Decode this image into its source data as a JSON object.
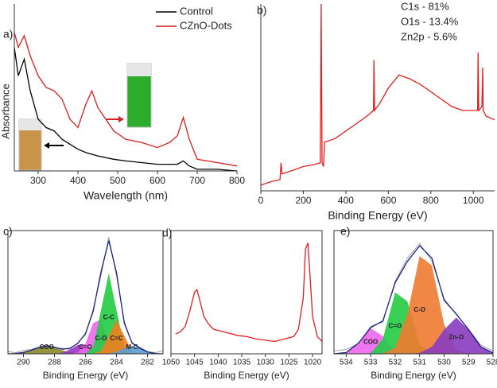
{
  "chart_data": [
    {
      "type": "line",
      "label": "a)",
      "xlabel": "Wavelength (nm)",
      "ylabel": "Absorbance",
      "legend": "upper right",
      "xlim": [
        240,
        800
      ],
      "xticks": [
        300,
        400,
        500,
        600,
        700,
        800
      ],
      "ylim": [
        0,
        1
      ],
      "x": [
        240,
        250,
        265,
        280,
        300,
        320,
        340,
        360,
        380,
        400,
        420,
        435,
        450,
        470,
        490,
        520,
        560,
        600,
        630,
        650,
        665,
        680,
        700,
        750,
        800
      ],
      "series": [
        {
          "name": "Control",
          "color": "#000000",
          "values": [
            0.74,
            0.57,
            0.67,
            0.48,
            0.31,
            0.26,
            0.24,
            0.19,
            0.16,
            0.13,
            0.11,
            0.1,
            0.09,
            0.08,
            0.07,
            0.06,
            0.05,
            0.04,
            0.04,
            0.04,
            0.06,
            0.03,
            0.01,
            0.01,
            0.0
          ]
        },
        {
          "name": "CZnO-Dots",
          "color": "#d42020",
          "values": [
            0.83,
            0.74,
            0.81,
            0.69,
            0.57,
            0.5,
            0.48,
            0.43,
            0.31,
            0.26,
            0.4,
            0.48,
            0.38,
            0.31,
            0.24,
            0.19,
            0.17,
            0.14,
            0.17,
            0.21,
            0.32,
            0.19,
            0.07,
            0.05,
            0.03
          ]
        }
      ]
    },
    {
      "type": "line",
      "label": "b)",
      "xlabel": "Binding Energy (eV)",
      "annotations": [
        "C1s  -  81%",
        "O1s  -  13.4%",
        "Zn2p  -  5.6%"
      ],
      "xlim": [
        0,
        1100
      ],
      "xticks": [
        0,
        200,
        400,
        600,
        800,
        1000
      ],
      "ylim": [
        0,
        1
      ],
      "x": [
        0,
        50,
        90,
        95,
        100,
        150,
        200,
        250,
        280,
        284,
        288,
        295,
        300,
        350,
        400,
        450,
        500,
        530,
        532,
        535,
        560,
        600,
        650,
        700,
        750,
        800,
        850,
        900,
        950,
        1000,
        1020,
        1022,
        1025,
        1040,
        1044,
        1046,
        1060,
        1100
      ],
      "series": [
        {
          "color": "#e02020",
          "values": [
            0.03,
            0.05,
            0.06,
            0.15,
            0.09,
            0.11,
            0.13,
            0.14,
            0.15,
            1.0,
            0.15,
            0.13,
            0.26,
            0.28,
            0.32,
            0.36,
            0.4,
            0.43,
            0.7,
            0.43,
            0.47,
            0.55,
            0.62,
            0.6,
            0.57,
            0.53,
            0.49,
            0.45,
            0.43,
            0.43,
            0.43,
            0.74,
            0.43,
            0.45,
            0.66,
            0.43,
            0.4,
            0.38
          ]
        }
      ]
    },
    {
      "type": "line",
      "label": "c)",
      "xlabel": "Binding Energy (eV)",
      "legend": "peaks",
      "xlim": [
        291,
        281
      ],
      "xticks": [
        290,
        288,
        286,
        284,
        282
      ],
      "ylim": [
        0,
        1.1
      ],
      "x": [
        291,
        290.5,
        290,
        289.5,
        289,
        288.5,
        288,
        287.5,
        287,
        286.5,
        286,
        285.5,
        285,
        284.5,
        284,
        283.5,
        283,
        282.5,
        282,
        281.5,
        281
      ],
      "series": [
        {
          "name": "COO",
          "color": "#8a8a2a",
          "fill": true,
          "values": [
            0,
            0.003,
            0.012,
            0.032,
            0.057,
            0.07,
            0.057,
            0.032,
            0.012,
            0.003,
            0,
            0,
            0,
            0,
            0,
            0,
            0,
            0,
            0,
            0,
            0
          ]
        },
        {
          "name": "C=O",
          "color": "#9b30c8",
          "fill": true,
          "values": [
            0,
            0,
            0,
            0,
            0,
            0,
            0.001,
            0.009,
            0.037,
            0.079,
            0.085,
            0.045,
            0.012,
            0.002,
            0,
            0,
            0,
            0,
            0,
            0,
            0
          ]
        },
        {
          "name": "C-O",
          "color": "#ee66ee",
          "fill": true,
          "values": [
            0,
            0,
            0,
            0,
            0,
            0,
            0,
            0,
            0.001,
            0.011,
            0.092,
            0.276,
            0.305,
            0.124,
            0.019,
            0.001,
            0,
            0,
            0,
            0,
            0
          ]
        },
        {
          "name": "C-C",
          "color": "#22cc44",
          "fill": true,
          "values": [
            0,
            0,
            0,
            0,
            0,
            0,
            0,
            0,
            0,
            0,
            0.003,
            0.061,
            0.389,
            0.72,
            0.389,
            0.061,
            0.003,
            0,
            0,
            0,
            0
          ]
        },
        {
          "name": "C=C",
          "color": "#f08020",
          "fill": true,
          "values": [
            0,
            0,
            0,
            0,
            0,
            0,
            0,
            0,
            0,
            0,
            0,
            0.001,
            0.025,
            0.162,
            0.3,
            0.162,
            0.025,
            0.001,
            0,
            0,
            0
          ]
        },
        {
          "name": "M-C",
          "color": "#5a9fd8",
          "fill": true,
          "values": [
            0,
            0,
            0,
            0,
            0,
            0,
            0,
            0,
            0,
            0,
            0,
            0,
            0,
            0.003,
            0.017,
            0.049,
            0.07,
            0.049,
            0.017,
            0.003,
            0
          ]
        },
        {
          "color": "#888888",
          "values": [
            0.02,
            0.01,
            0.03,
            0.04,
            0.06,
            0.08,
            0.05,
            0.05,
            0.04,
            0.1,
            0.17,
            0.4,
            0.7,
            1.04,
            0.7,
            0.29,
            0.09,
            0.06,
            0.02,
            0.01,
            0.03
          ]
        },
        {
          "color": "#1a237e",
          "values": [
            0,
            0.003,
            0.012,
            0.032,
            0.057,
            0.07,
            0.058,
            0.041,
            0.05,
            0.093,
            0.18,
            0.383,
            0.731,
            1.011,
            0.725,
            0.273,
            0.098,
            0.05,
            0.017,
            0.003,
            0
          ]
        }
      ]
    },
    {
      "type": "line",
      "label": "d)",
      "xlabel": "Binding Energy (eV)",
      "xlim": [
        1050,
        1018
      ],
      "xticks": [
        1050,
        1045,
        1040,
        1035,
        1030,
        1025,
        1020
      ],
      "ylim": [
        0,
        1
      ],
      "x": [
        1049,
        1048,
        1047,
        1046,
        1045,
        1044.5,
        1044,
        1043,
        1042,
        1041,
        1040,
        1038,
        1036,
        1034,
        1032,
        1030,
        1028,
        1026,
        1024,
        1023,
        1022,
        1021.5,
        1021,
        1020.5,
        1020,
        1019,
        1018
      ],
      "series": [
        {
          "color": "#e02020",
          "values": [
            0.16,
            0.18,
            0.22,
            0.35,
            0.5,
            0.52,
            0.45,
            0.3,
            0.24,
            0.2,
            0.19,
            0.17,
            0.15,
            0.14,
            0.12,
            0.11,
            0.1,
            0.12,
            0.14,
            0.2,
            0.45,
            0.85,
            0.9,
            0.6,
            0.3,
            0.14,
            0.1
          ]
        }
      ]
    },
    {
      "type": "line",
      "label": "e)",
      "xlabel": "Binding Energy (eV)",
      "legend": "peaks",
      "xlim": [
        534.5,
        528
      ],
      "xticks": [
        534,
        533,
        532,
        531,
        530,
        529,
        528
      ],
      "ylim": [
        0,
        0.85
      ],
      "x": [
        534.5,
        534,
        533.5,
        533,
        532.5,
        532,
        531.5,
        531,
        530.5,
        530,
        529.5,
        529,
        528.5,
        528
      ],
      "series": [
        {
          "name": "COO",
          "color": "#ee66ee",
          "fill": true,
          "values": [
            0,
            0.009,
            0.074,
            0.176,
            0.121,
            0.024,
            0.001,
            0,
            0,
            0,
            0,
            0,
            0,
            0
          ]
        },
        {
          "name": "C=O",
          "color": "#22cc44",
          "fill": true,
          "values": [
            0,
            0,
            0,
            0.005,
            0.104,
            0.424,
            0.362,
            0.065,
            0.002,
            0,
            0,
            0,
            0,
            0
          ]
        },
        {
          "name": "C-O",
          "color": "#f07a30",
          "fill": true,
          "values": [
            0,
            0,
            0,
            0,
            0.002,
            0.041,
            0.274,
            0.674,
            0.61,
            0.203,
            0.025,
            0.001,
            0,
            0
          ]
        },
        {
          "name": "Zn-O",
          "color": "#8a3cc0",
          "fill": true,
          "values": [
            0,
            0,
            0,
            0,
            0,
            0,
            0,
            0.006,
            0.048,
            0.166,
            0.25,
            0.166,
            0.048,
            0.006
          ]
        },
        {
          "color": "#888888",
          "values": [
            0.02,
            0.03,
            0.07,
            0.19,
            0.22,
            0.5,
            0.66,
            0.76,
            0.64,
            0.38,
            0.27,
            0.17,
            0.06,
            0.02
          ]
        },
        {
          "color": "#1a237e",
          "values": [
            0,
            0.009,
            0.074,
            0.181,
            0.227,
            0.489,
            0.637,
            0.745,
            0.66,
            0.369,
            0.275,
            0.167,
            0.048,
            0.006
          ]
        }
      ]
    }
  ]
}
